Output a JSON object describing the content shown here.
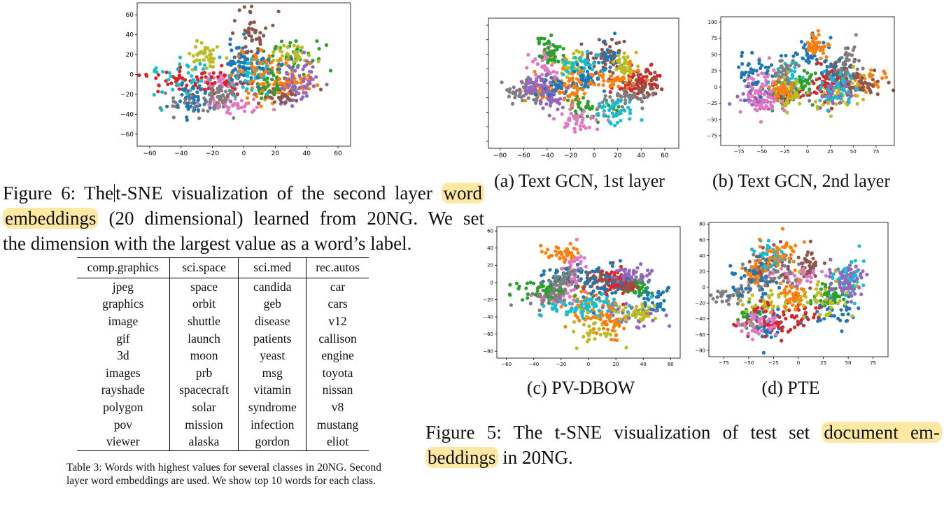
{
  "figure6": {
    "caption_a": "Figure 6: The",
    "caption_b": "t-SNE visualization of the second layer",
    "caption_hl1": "word",
    "caption_hl2": "embeddings",
    "caption_c": "(20 dimensional) learned from 20NG. We set",
    "caption_d": "the dimension with the largest value as a word’s label."
  },
  "table3": {
    "headers": [
      "comp.graphics",
      "sci.space",
      "sci.med",
      "rec.autos"
    ],
    "rows": [
      [
        "jpeg",
        "space",
        "candida",
        "car"
      ],
      [
        "graphics",
        "orbit",
        "geb",
        "cars"
      ],
      [
        "image",
        "shuttle",
        "disease",
        "v12"
      ],
      [
        "gif",
        "launch",
        "patients",
        "callison"
      ],
      [
        "3d",
        "moon",
        "yeast",
        "engine"
      ],
      [
        "images",
        "prb",
        "msg",
        "toyota"
      ],
      [
        "rayshade",
        "spacecraft",
        "vitamin",
        "nissan"
      ],
      [
        "polygon",
        "solar",
        "syndrome",
        "v8"
      ],
      [
        "pov",
        "mission",
        "infection",
        "mustang"
      ],
      [
        "viewer",
        "alaska",
        "gordon",
        "eliot"
      ]
    ],
    "caption": "Table 3: Words with highest values for several classes in 20NG. Second layer word embeddings are used. We show top 10 words for each class."
  },
  "figure5": {
    "sub_a": "(a) Text GCN, 1st layer",
    "sub_b": "(b) Text GCN, 2nd layer",
    "sub_c": "(c) PV-DBOW",
    "sub_d": "(d) PTE",
    "caption_a": "Figure 5: The t-SNE visualization of test set",
    "caption_hl1": "document em-",
    "caption_hl2": "beddings",
    "caption_b": "in 20NG."
  },
  "palette": [
    "#1f77b4",
    "#ff7f0e",
    "#2ca02c",
    "#d62728",
    "#9467bd",
    "#8c564b",
    "#e377c2",
    "#7f7f7f",
    "#bcbd22",
    "#17becf"
  ],
  "chart_data": [
    {
      "type": "scatter",
      "title": "",
      "xticks": [
        -60,
        -40,
        -20,
        0,
        20,
        40,
        60
      ],
      "yticks": [
        -60,
        -40,
        -20,
        0,
        20,
        40,
        60
      ],
      "xlim": [
        -68,
        68
      ],
      "ylim": [
        -72,
        72
      ]
    },
    {
      "type": "scatter",
      "title": "",
      "xticks": [
        -80,
        -60,
        -40,
        -20,
        0,
        20,
        40,
        60
      ],
      "yticks": [],
      "xlim": [
        -90,
        72
      ],
      "ylim": [
        -95,
        95
      ]
    },
    {
      "type": "scatter",
      "title": "",
      "xticks": [
        -75,
        -50,
        -25,
        0,
        25,
        50,
        75
      ],
      "yticks": [
        100,
        75,
        50,
        25,
        0,
        -25,
        -50,
        -75
      ],
      "xlim": [
        -95,
        95
      ],
      "ylim": [
        -90,
        108
      ]
    },
    {
      "type": "scatter",
      "title": "",
      "xticks": [
        -60,
        -40,
        -20,
        0,
        20,
        40,
        60
      ],
      "yticks": [
        60,
        40,
        20,
        0,
        -20,
        -40,
        -60,
        -80
      ],
      "xlim": [
        -67,
        67
      ],
      "ylim": [
        -88,
        65
      ]
    },
    {
      "type": "scatter",
      "title": "",
      "xticks": [
        -75,
        -50,
        -25,
        0,
        25,
        50,
        75
      ],
      "yticks": [
        80,
        60,
        40,
        20,
        0,
        -20,
        -40,
        -60,
        -80
      ],
      "xlim": [
        -90,
        90
      ],
      "ylim": [
        -88,
        82
      ]
    }
  ]
}
